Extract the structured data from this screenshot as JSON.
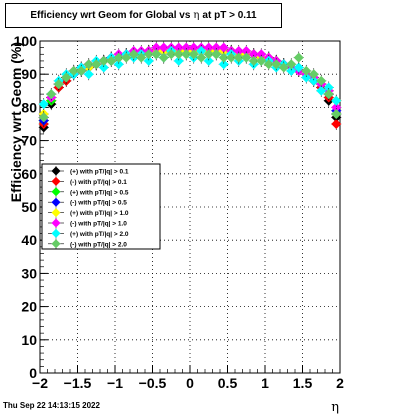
{
  "window": {
    "title_prefix": "Efficiency wrt Geom for Global vs",
    "title_symbol": "η",
    "title_suffix": "at pT > 0.11",
    "timestamp": "Thu Sep 22 14:13:15 2022"
  },
  "chart_data": {
    "type": "scatter",
    "xlabel": "η",
    "ylabel": "Efficiency wrt Geom (%)",
    "xlim": [
      -2,
      2
    ],
    "ylim": [
      0,
      100
    ],
    "x_ticks": [
      -2,
      -1.5,
      -1,
      -0.5,
      0,
      0.5,
      1,
      1.5,
      2
    ],
    "x_tick_labels": [
      "−2",
      "−1.5",
      "−1",
      "−0.5",
      "0",
      "0.5",
      "1",
      "1.5",
      "2"
    ],
    "y_ticks": [
      0,
      10,
      20,
      30,
      40,
      50,
      60,
      70,
      80,
      90,
      100
    ],
    "y_tick_labels": [
      "0",
      "10",
      "20",
      "30",
      "40",
      "50",
      "60",
      "70",
      "80",
      "90",
      "100"
    ],
    "grid": true,
    "legend_position": "center-left",
    "series": [
      {
        "name": "(+) with pT/|q| > 0.1",
        "color": "#000000",
        "x": [
          -1.95,
          -1.85,
          -1.75,
          -1.65,
          -1.55,
          -1.45,
          -1.35,
          -1.25,
          -1.15,
          -1.05,
          -0.95,
          -0.85,
          -0.75,
          -0.65,
          -0.55,
          -0.45,
          -0.35,
          -0.25,
          -0.15,
          -0.05,
          0.05,
          0.15,
          0.25,
          0.35,
          0.45,
          0.55,
          0.65,
          0.75,
          0.85,
          0.95,
          1.05,
          1.15,
          1.25,
          1.35,
          1.45,
          1.55,
          1.65,
          1.75,
          1.85,
          1.95
        ],
        "y": [
          74,
          81,
          86,
          88,
          90,
          91,
          92,
          93,
          94,
          94,
          95,
          96,
          96,
          96,
          97,
          97,
          97,
          97,
          97,
          97,
          97,
          97,
          97,
          97,
          97,
          97,
          96,
          96,
          96,
          95,
          94,
          94,
          93,
          92,
          91,
          90,
          88,
          86,
          82,
          77
        ]
      },
      {
        "name": "(-) with pT/|q| > 0.1",
        "color": "#ff0000",
        "x": [
          -1.95,
          -1.85,
          -1.75,
          -1.65,
          -1.55,
          -1.45,
          -1.35,
          -1.25,
          -1.15,
          -1.05,
          -0.95,
          -0.85,
          -0.75,
          -0.65,
          -0.55,
          -0.45,
          -0.35,
          -0.25,
          -0.15,
          -0.05,
          0.05,
          0.15,
          0.25,
          0.35,
          0.45,
          0.55,
          0.65,
          0.75,
          0.85,
          0.95,
          1.05,
          1.15,
          1.25,
          1.35,
          1.45,
          1.55,
          1.65,
          1.75,
          1.85,
          1.95
        ],
        "y": [
          75,
          82,
          86,
          88,
          90,
          91,
          92,
          93,
          94,
          95,
          95,
          96,
          96,
          96,
          97,
          97,
          97,
          97,
          97,
          97,
          97,
          97,
          97,
          97,
          97,
          97,
          96,
          96,
          96,
          95,
          95,
          94,
          93,
          92,
          91,
          90,
          88,
          86,
          83,
          75
        ]
      },
      {
        "name": "(+) with pT/|q| > 0.5",
        "color": "#00ff00",
        "x": [
          -1.95,
          -1.85,
          -1.75,
          -1.65,
          -1.55,
          -1.45,
          -1.35,
          -1.25,
          -1.15,
          -1.05,
          -0.95,
          -0.85,
          -0.75,
          -0.65,
          -0.55,
          -0.45,
          -0.35,
          -0.25,
          -0.15,
          -0.05,
          0.05,
          0.15,
          0.25,
          0.35,
          0.45,
          0.55,
          0.65,
          0.75,
          0.85,
          0.95,
          1.05,
          1.15,
          1.25,
          1.35,
          1.45,
          1.55,
          1.65,
          1.75,
          1.85,
          1.95
        ],
        "y": [
          76,
          82,
          87,
          89,
          90,
          92,
          92,
          93,
          94,
          95,
          95,
          96,
          96,
          96,
          97,
          97,
          97,
          97,
          97,
          97,
          97,
          97,
          97,
          97,
          97,
          97,
          96,
          96,
          96,
          95,
          95,
          94,
          93,
          92,
          91,
          90,
          89,
          87,
          84,
          78
        ]
      },
      {
        "name": "(-) with pT/|q| > 0.5",
        "color": "#0000ff",
        "x": [
          -1.95,
          -1.85,
          -1.75,
          -1.65,
          -1.55,
          -1.45,
          -1.35,
          -1.25,
          -1.15,
          -1.05,
          -0.95,
          -0.85,
          -0.75,
          -0.65,
          -0.55,
          -0.45,
          -0.35,
          -0.25,
          -0.15,
          -0.05,
          0.05,
          0.15,
          0.25,
          0.35,
          0.45,
          0.55,
          0.65,
          0.75,
          0.85,
          0.95,
          1.05,
          1.15,
          1.25,
          1.35,
          1.45,
          1.55,
          1.65,
          1.75,
          1.85,
          1.95
        ],
        "y": [
          76,
          83,
          87,
          89,
          90,
          91,
          92,
          93,
          94,
          95,
          95,
          96,
          96,
          96,
          97,
          97,
          97,
          97,
          97,
          97,
          97,
          97,
          97,
          97,
          97,
          97,
          96,
          96,
          96,
          95,
          95,
          94,
          93,
          92,
          91,
          90,
          89,
          87,
          84,
          79
        ]
      },
      {
        "name": "(+) with pT/|q| > 1.0",
        "color": "#ffff00",
        "x": [
          -1.95,
          -1.85,
          -1.75,
          -1.65,
          -1.55,
          -1.45,
          -1.35,
          -1.25,
          -1.15,
          -1.05,
          -0.95,
          -0.85,
          -0.75,
          -0.65,
          -0.55,
          -0.45,
          -0.35,
          -0.25,
          -0.15,
          -0.05,
          0.05,
          0.15,
          0.25,
          0.35,
          0.45,
          0.55,
          0.65,
          0.75,
          0.85,
          0.95,
          1.05,
          1.15,
          1.25,
          1.35,
          1.45,
          1.55,
          1.65,
          1.75,
          1.85,
          1.95
        ],
        "y": [
          78,
          83,
          87,
          89,
          91,
          92,
          92,
          93,
          94,
          95,
          95,
          96,
          96,
          96,
          97,
          97,
          97,
          97,
          97,
          97,
          97,
          97,
          97,
          97,
          97,
          97,
          96,
          96,
          96,
          95,
          95,
          94,
          93,
          92,
          91,
          90,
          89,
          87,
          85,
          82
        ]
      },
      {
        "name": "(-) with pT/|q| > 1.0",
        "color": "#ff00ff",
        "x": [
          -1.95,
          -1.85,
          -1.75,
          -1.65,
          -1.55,
          -1.45,
          -1.35,
          -1.25,
          -1.15,
          -1.05,
          -0.95,
          -0.85,
          -0.75,
          -0.65,
          -0.55,
          -0.45,
          -0.35,
          -0.25,
          -0.15,
          -0.05,
          0.05,
          0.15,
          0.25,
          0.35,
          0.45,
          0.55,
          0.65,
          0.75,
          0.85,
          0.95,
          1.05,
          1.15,
          1.25,
          1.35,
          1.45,
          1.55,
          1.65,
          1.75,
          1.85,
          1.95
        ],
        "y": [
          77,
          83,
          87,
          89,
          91,
          92,
          93,
          93,
          94,
          95,
          96,
          96,
          97,
          97,
          97,
          98,
          98,
          98,
          98,
          98,
          98,
          98,
          98,
          98,
          98,
          97,
          97,
          97,
          96,
          96,
          95,
          94,
          93,
          92,
          91,
          90,
          89,
          87,
          85,
          80
        ]
      },
      {
        "name": "(+) with pT/|q| > 2.0",
        "color": "#00ffff",
        "x": [
          -1.95,
          -1.85,
          -1.75,
          -1.65,
          -1.55,
          -1.45,
          -1.35,
          -1.25,
          -1.15,
          -1.05,
          -0.95,
          -0.85,
          -0.75,
          -0.65,
          -0.55,
          -0.45,
          -0.35,
          -0.25,
          -0.15,
          -0.05,
          0.05,
          0.15,
          0.25,
          0.35,
          0.45,
          0.55,
          0.65,
          0.75,
          0.85,
          0.95,
          1.05,
          1.15,
          1.25,
          1.35,
          1.45,
          1.55,
          1.65,
          1.75,
          1.85,
          1.95
        ],
        "y": [
          81,
          84,
          88,
          90,
          90,
          92,
          90,
          94,
          92,
          95,
          93,
          96,
          95,
          96,
          94,
          96,
          95,
          97,
          94,
          96,
          95,
          97,
          94,
          96,
          93,
          96,
          94,
          95,
          93,
          94,
          94,
          92,
          93,
          91,
          92,
          89,
          88,
          85,
          86,
          82
        ]
      },
      {
        "name": "(-) with pT/|q| > 2.0",
        "color": "#66cc66",
        "x": [
          -1.95,
          -1.85,
          -1.75,
          -1.65,
          -1.55,
          -1.45,
          -1.35,
          -1.25,
          -1.15,
          -1.05,
          -0.95,
          -0.85,
          -0.75,
          -0.65,
          -0.55,
          -0.45,
          -0.35,
          -0.25,
          -0.15,
          -0.05,
          0.05,
          0.15,
          0.25,
          0.35,
          0.45,
          0.55,
          0.65,
          0.75,
          0.85,
          0.95,
          1.05,
          1.15,
          1.25,
          1.35,
          1.45,
          1.55,
          1.65,
          1.75,
          1.85,
          1.95
        ],
        "y": [
          77,
          84,
          87,
          89,
          91,
          91,
          93,
          93,
          94,
          94,
          95,
          95,
          96,
          95,
          96,
          96,
          95,
          96,
          96,
          96,
          96,
          95,
          96,
          96,
          95,
          95,
          95,
          95,
          94,
          94,
          93,
          93,
          92,
          93,
          95,
          91,
          90,
          88,
          84,
          78
        ]
      }
    ]
  }
}
